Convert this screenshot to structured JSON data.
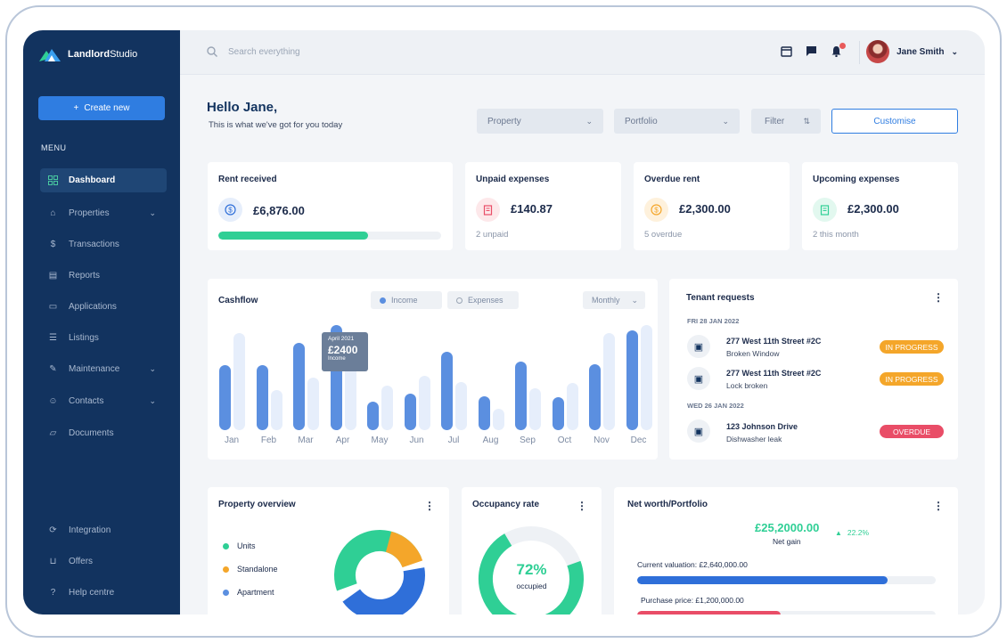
{
  "brand": {
    "name_bold": "Landlord",
    "name_light": "Studio"
  },
  "sidebar": {
    "create_label": "Create new",
    "menu_label": "MENU",
    "items": [
      {
        "label": "Dashboard",
        "icon": "dashboard-icon",
        "active": true
      },
      {
        "label": "Properties",
        "icon": "home-icon"
      },
      {
        "label": "Transactions",
        "icon": "dollar-icon"
      },
      {
        "label": "Reports",
        "icon": "report-icon"
      },
      {
        "label": "Applications",
        "icon": "document-icon"
      },
      {
        "label": "Listings",
        "icon": "listing-icon"
      },
      {
        "label": "Maintenance",
        "icon": "wrench-icon"
      },
      {
        "label": "Contacts",
        "icon": "contacts-icon"
      },
      {
        "label": "Documents",
        "icon": "folder-icon"
      }
    ],
    "bottom_items": [
      {
        "label": "Integration",
        "icon": "sync-icon"
      },
      {
        "label": "Offers",
        "icon": "cart-icon"
      },
      {
        "label": "Help centre",
        "icon": "help-icon"
      }
    ]
  },
  "topbar": {
    "search_placeholder": "Search everything",
    "user_name": "Jane Smith"
  },
  "greeting": {
    "title": "Hello Jane,",
    "subtitle": "This is what we've got for you today"
  },
  "filters": {
    "property": "Property",
    "portfolio": "Portfolio",
    "filter": "Filter",
    "customise": "Customise"
  },
  "stats": {
    "rent": {
      "title": "Rent received",
      "value": "£6,876.00",
      "progress": 0.67
    },
    "unpaid": {
      "title": "Unpaid expenses",
      "value": "£140.87",
      "sub": "2 unpaid"
    },
    "overdue": {
      "title": "Overdue rent",
      "value": "£2,300.00",
      "sub": "5 overdue"
    },
    "upcoming": {
      "title": "Upcoming expenses",
      "value": "£2,300.00",
      "sub": "2 this month"
    }
  },
  "cashflow": {
    "title": "Cashflow",
    "legend_income": "Income",
    "legend_expenses": "Expenses",
    "period": "Monthly",
    "tooltip": {
      "month": "April 2021",
      "value": "£2400",
      "label": "Income"
    }
  },
  "chart_data": {
    "type": "bar",
    "categories": [
      "Jan",
      "Feb",
      "Mar",
      "Apr",
      "May",
      "Jun",
      "Jul",
      "Aug",
      "Sep",
      "Oct",
      "Nov",
      "Dec"
    ],
    "series": [
      {
        "name": "Income",
        "values": [
          62,
          62,
          83,
          100,
          27,
          35,
          75,
          32,
          65,
          31,
          63,
          95
        ],
        "color": "#5b8fe0"
      },
      {
        "name": "Expenses",
        "values": [
          92,
          38,
          50,
          65,
          42,
          52,
          46,
          20,
          40,
          45,
          92,
          100
        ],
        "color": "#e6eefb"
      }
    ],
    "ylim": [
      0,
      100
    ]
  },
  "tenant": {
    "title": "Tenant requests",
    "groups": [
      {
        "date": "FRI 28 JAN 2022",
        "items": [
          {
            "address": "277 West 11th Street #2C",
            "desc": "Broken Window",
            "status": "IN PROGRESS",
            "color": "#f4a62a"
          },
          {
            "address": "277 West 11th Street #2C",
            "desc": "Lock broken",
            "status": "IN PROGRESS",
            "color": "#f4a62a"
          }
        ]
      },
      {
        "date": "WED 26 JAN 2022",
        "items": [
          {
            "address": "123 Johnson Drive",
            "desc": "Dishwasher leak",
            "status": "OVERDUE",
            "color": "#e94d67"
          }
        ]
      }
    ]
  },
  "property_overview": {
    "title": "Property overview",
    "legend": [
      {
        "label": "Units",
        "color": "#2fcf95"
      },
      {
        "label": "Standalone",
        "color": "#f4a62a"
      },
      {
        "label": "Apartment",
        "color": "#5b8fe0"
      }
    ]
  },
  "occupancy": {
    "title": "Occupancy rate",
    "value": "72%",
    "label": "occupied",
    "fraction": 0.72
  },
  "networth": {
    "title": "Net worth/Portfolio",
    "value": "£25,2000.00",
    "value_label": "Net gain",
    "change": "22.2%",
    "rows": [
      {
        "label": "Current valuation: £2,640,000.00",
        "fraction": 0.84,
        "color": "#2f6fd9"
      },
      {
        "label": "Purchase price: £1,200,000.00",
        "fraction": 0.48,
        "color": "#e94d67"
      }
    ]
  }
}
